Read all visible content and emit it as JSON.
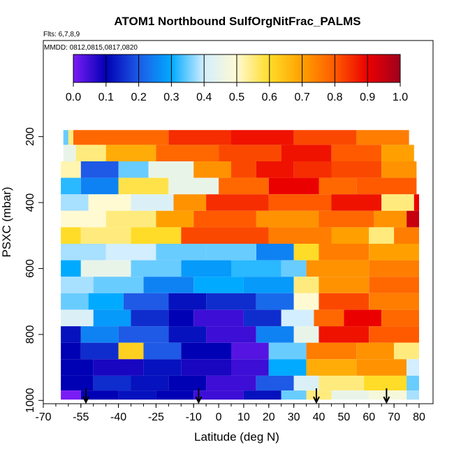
{
  "chart_data": {
    "type": "heatmap",
    "title": "ATOM1 Northbound SulfOrgNitFrac_PALMS",
    "flights_label": "Flts: 6,7,8,9",
    "dates_label": "MMDD: 0812,0815,0817,0820",
    "xlabel": "Latitude (deg N)",
    "ylabel": "PSXC (mbar)",
    "xlim": [
      -70,
      80
    ],
    "ylim": [
      1000,
      150
    ],
    "x_tick_labels": [
      "-70",
      "-55",
      "-40",
      "-25",
      "-10",
      "0",
      "10",
      "20",
      "30",
      "40",
      "50",
      "60",
      "70",
      "80"
    ],
    "x_tick_values": [
      -70,
      -55,
      -40,
      -25,
      -10,
      0,
      10,
      20,
      30,
      40,
      50,
      60,
      70,
      80
    ],
    "y_tick_labels": [
      "200",
      "400",
      "600",
      "800",
      "1000"
    ],
    "y_tick_values": [
      200,
      400,
      600,
      800,
      1000
    ],
    "colorbar": {
      "range": [
        0,
        1
      ],
      "tick_labels": [
        "0.0",
        "0.1",
        "0.2",
        "0.3",
        "0.4",
        "0.5",
        "0.6",
        "0.7",
        "0.8",
        "0.9",
        "1.0"
      ],
      "stops": [
        "#7a1cf5",
        "#0000b4",
        "#1e5ae6",
        "#00aaff",
        "#d2eeff",
        "#fffad2",
        "#ffdc28",
        "#ffa000",
        "#ff5a00",
        "#eb0000",
        "#a0001e"
      ]
    },
    "flight_markers_lat": [
      -53,
      -8,
      39,
      67
    ],
    "bands": [
      {
        "p": 200,
        "segs": [
          [
            -62,
            -60,
            0.35
          ],
          [
            -60,
            -58,
            0.55
          ],
          [
            -58,
            -20,
            0.78
          ],
          [
            -20,
            5,
            0.85
          ],
          [
            5,
            30,
            0.88
          ],
          [
            30,
            55,
            0.82
          ],
          [
            55,
            76,
            0.75
          ]
        ]
      },
      {
        "p": 250,
        "segs": [
          [
            -62,
            -57,
            0.45
          ],
          [
            -57,
            -45,
            0.55
          ],
          [
            -45,
            -25,
            0.68
          ],
          [
            -25,
            0,
            0.78
          ],
          [
            0,
            25,
            0.82
          ],
          [
            25,
            45,
            0.88
          ],
          [
            45,
            65,
            0.8
          ],
          [
            65,
            78,
            0.7
          ]
        ]
      },
      {
        "p": 300,
        "segs": [
          [
            -63,
            -55,
            0.52
          ],
          [
            -55,
            -40,
            0.2
          ],
          [
            -40,
            -28,
            0.35
          ],
          [
            -28,
            -10,
            0.45
          ],
          [
            -10,
            5,
            0.72
          ],
          [
            5,
            15,
            0.82
          ],
          [
            15,
            30,
            0.88
          ],
          [
            30,
            45,
            0.85
          ],
          [
            45,
            65,
            0.82
          ],
          [
            65,
            79,
            0.72
          ]
        ]
      },
      {
        "p": 350,
        "segs": [
          [
            -63,
            -55,
            0.32
          ],
          [
            -55,
            -40,
            0.25
          ],
          [
            -40,
            -20,
            0.58
          ],
          [
            -20,
            0,
            0.45
          ],
          [
            0,
            20,
            0.78
          ],
          [
            20,
            40,
            0.9
          ],
          [
            40,
            55,
            0.78
          ],
          [
            55,
            79,
            0.8
          ]
        ]
      },
      {
        "p": 400,
        "segs": [
          [
            -63,
            -52,
            0.38
          ],
          [
            -52,
            -35,
            0.5
          ],
          [
            -35,
            -18,
            0.42
          ],
          [
            -18,
            -5,
            0.72
          ],
          [
            -5,
            20,
            0.85
          ],
          [
            20,
            45,
            0.8
          ],
          [
            45,
            65,
            0.88
          ],
          [
            65,
            78,
            0.55
          ],
          [
            78,
            80,
            0.9
          ]
        ]
      },
      {
        "p": 450,
        "segs": [
          [
            -63,
            -45,
            0.5
          ],
          [
            -45,
            -25,
            0.55
          ],
          [
            -25,
            -10,
            0.7
          ],
          [
            -10,
            15,
            0.8
          ],
          [
            15,
            40,
            0.72
          ],
          [
            40,
            62,
            0.78
          ],
          [
            62,
            75,
            0.72
          ],
          [
            75,
            80,
            0.95
          ]
        ]
      },
      {
        "p": 500,
        "segs": [
          [
            -63,
            -55,
            0.6
          ],
          [
            -55,
            -35,
            0.55
          ],
          [
            -35,
            -15,
            0.6
          ],
          [
            -15,
            20,
            0.82
          ],
          [
            20,
            45,
            0.75
          ],
          [
            45,
            60,
            0.7
          ],
          [
            60,
            70,
            0.55
          ],
          [
            70,
            80,
            0.75
          ]
        ]
      },
      {
        "p": 550,
        "segs": [
          [
            -63,
            -45,
            0.38
          ],
          [
            -45,
            -25,
            0.4
          ],
          [
            -25,
            -5,
            0.35
          ],
          [
            -5,
            15,
            0.35
          ],
          [
            15,
            30,
            0.25
          ],
          [
            30,
            40,
            0.6
          ],
          [
            40,
            60,
            0.75
          ],
          [
            60,
            80,
            0.7
          ]
        ]
      },
      {
        "p": 600,
        "segs": [
          [
            -63,
            -55,
            0.3
          ],
          [
            -55,
            -35,
            0.45
          ],
          [
            -35,
            -15,
            0.35
          ],
          [
            -15,
            5,
            0.28
          ],
          [
            5,
            25,
            0.32
          ],
          [
            25,
            35,
            0.35
          ],
          [
            35,
            60,
            0.72
          ],
          [
            60,
            80,
            0.75
          ]
        ]
      },
      {
        "p": 650,
        "segs": [
          [
            -63,
            -50,
            0.38
          ],
          [
            -50,
            -30,
            0.35
          ],
          [
            -30,
            -10,
            0.25
          ],
          [
            -10,
            10,
            0.3
          ],
          [
            10,
            30,
            0.28
          ],
          [
            30,
            40,
            0.55
          ],
          [
            40,
            60,
            0.72
          ],
          [
            60,
            80,
            0.78
          ]
        ]
      },
      {
        "p": 700,
        "segs": [
          [
            -63,
            -52,
            0.35
          ],
          [
            -52,
            -38,
            0.3
          ],
          [
            -38,
            -20,
            0.2
          ],
          [
            -20,
            -5,
            0.12
          ],
          [
            -5,
            15,
            0.15
          ],
          [
            15,
            30,
            0.22
          ],
          [
            30,
            40,
            0.5
          ],
          [
            40,
            60,
            0.82
          ],
          [
            60,
            80,
            0.75
          ]
        ]
      },
      {
        "p": 750,
        "segs": [
          [
            -63,
            -50,
            0.42
          ],
          [
            -50,
            -35,
            0.28
          ],
          [
            -35,
            -20,
            0.15
          ],
          [
            -20,
            -10,
            0.1
          ],
          [
            -10,
            10,
            0.05
          ],
          [
            10,
            25,
            0.15
          ],
          [
            25,
            38,
            0.4
          ],
          [
            38,
            50,
            0.78
          ],
          [
            50,
            65,
            0.9
          ],
          [
            65,
            80,
            0.78
          ]
        ]
      },
      {
        "p": 800,
        "segs": [
          [
            -63,
            -55,
            0.12
          ],
          [
            -55,
            -40,
            0.25
          ],
          [
            -40,
            -20,
            0.2
          ],
          [
            -20,
            -5,
            0.12
          ],
          [
            -5,
            15,
            0.05
          ],
          [
            15,
            30,
            0.25
          ],
          [
            30,
            40,
            0.45
          ],
          [
            40,
            60,
            0.88
          ],
          [
            60,
            80,
            0.8
          ]
        ]
      },
      {
        "p": 850,
        "segs": [
          [
            -63,
            -55,
            0.1
          ],
          [
            -55,
            -40,
            0.15
          ],
          [
            -40,
            -30,
            0.62
          ],
          [
            -30,
            -15,
            0.2
          ],
          [
            -15,
            5,
            0.1
          ],
          [
            5,
            20,
            0.03
          ],
          [
            20,
            35,
            0.35
          ],
          [
            35,
            55,
            0.75
          ],
          [
            55,
            70,
            0.72
          ],
          [
            70,
            80,
            0.55
          ]
        ]
      },
      {
        "p": 900,
        "segs": [
          [
            -63,
            -50,
            0.1
          ],
          [
            -50,
            -30,
            0.08
          ],
          [
            -30,
            -15,
            0.12
          ],
          [
            -15,
            5,
            0.08
          ],
          [
            5,
            20,
            0.05
          ],
          [
            20,
            35,
            0.3
          ],
          [
            35,
            55,
            0.68
          ],
          [
            55,
            75,
            0.72
          ],
          [
            75,
            80,
            0.4
          ]
        ]
      },
      {
        "p": 950,
        "segs": [
          [
            -63,
            -50,
            0.1
          ],
          [
            -50,
            -35,
            0.15
          ],
          [
            -35,
            -20,
            0.12
          ],
          [
            -20,
            -5,
            0.1
          ],
          [
            -5,
            15,
            0.05
          ],
          [
            15,
            30,
            0.2
          ],
          [
            30,
            40,
            0.42
          ],
          [
            40,
            58,
            0.55
          ],
          [
            58,
            75,
            0.6
          ],
          [
            75,
            80,
            0.35
          ]
        ]
      },
      {
        "p": 990,
        "segs": [
          [
            -63,
            -55,
            0.0
          ],
          [
            -55,
            -40,
            0.1
          ],
          [
            -40,
            -25,
            0.12
          ],
          [
            -25,
            -10,
            0.1
          ],
          [
            -10,
            10,
            0.05
          ],
          [
            10,
            25,
            0.12
          ],
          [
            25,
            35,
            0.35
          ],
          [
            35,
            45,
            0.55
          ],
          [
            45,
            60,
            0.45
          ],
          [
            60,
            75,
            0.48
          ],
          [
            75,
            80,
            0.38
          ]
        ]
      }
    ]
  }
}
